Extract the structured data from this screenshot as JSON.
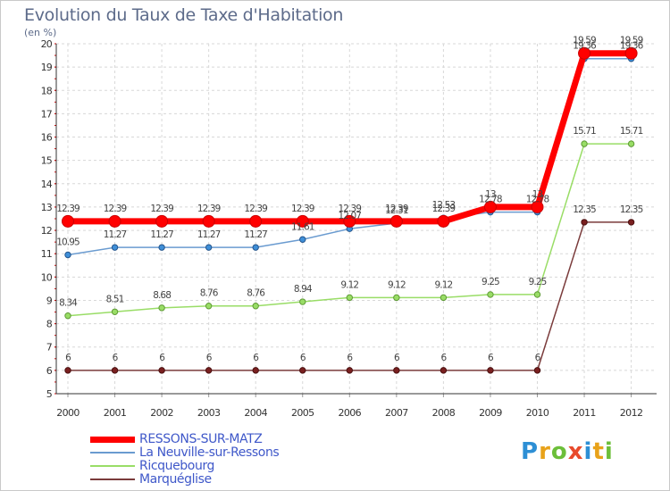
{
  "header": {
    "title": "Evolution du Taux de Taxe d'Habitation",
    "subtitle": "(en %)"
  },
  "logo": {
    "letters": [
      "P",
      "r",
      "o",
      "x",
      "i",
      "t",
      "i"
    ],
    "colors": [
      "#2d8fd5",
      "#e8a21a",
      "#6cbf3a",
      "#e84a2c",
      "#2d8fd5",
      "#e8a21a",
      "#6cbf3a"
    ]
  },
  "chart_data": {
    "type": "line",
    "title": "Evolution du Taux de Taxe d'Habitation",
    "ylabel": "(en %)",
    "xlabel": "",
    "x": [
      "2000",
      "2001",
      "2002",
      "2003",
      "2004",
      "2005",
      "2006",
      "2007",
      "2008",
      "2009",
      "2010",
      "2011",
      "2012"
    ],
    "ylim": [
      5,
      20
    ],
    "yticks": [
      "5",
      "6",
      "7",
      "8",
      "9",
      "10",
      "11",
      "12",
      "13",
      "14",
      "15",
      "16",
      "17",
      "18",
      "19",
      "20"
    ],
    "grid": true,
    "legend_position": "bottom-left",
    "series": [
      {
        "name": "RESSONS-SUR-MATZ",
        "color": "#ff0000",
        "values": [
          12.39,
          12.39,
          12.39,
          12.39,
          12.39,
          12.39,
          12.39,
          12.39,
          12.39,
          13,
          13,
          19.59,
          19.59
        ],
        "labels": [
          "12.39",
          "12.39",
          "12.39",
          "12.39",
          "12.39",
          "12.39",
          "12.39",
          "12.39",
          "12.39",
          "13",
          "13",
          "19.59",
          "19.59"
        ]
      },
      {
        "name": "La Neuville-sur-Ressons",
        "color": "#6a9bd0",
        "values": [
          10.95,
          11.27,
          11.27,
          11.27,
          11.27,
          11.61,
          12.07,
          12.31,
          12.53,
          12.78,
          12.78,
          19.36,
          19.36
        ],
        "labels": [
          "10.95",
          "11.27",
          "11.27",
          "11.27",
          "11.27",
          "11.61",
          "12.07",
          "12.31",
          "12.53",
          "12.78",
          "12.78",
          "19.36",
          "19.36"
        ]
      },
      {
        "name": "Ricquebourg",
        "color": "#99dd66",
        "values": [
          8.34,
          8.51,
          8.68,
          8.76,
          8.76,
          8.94,
          9.12,
          9.12,
          9.12,
          9.25,
          9.25,
          15.71,
          15.71
        ],
        "labels": [
          "8.34",
          "8.51",
          "8.68",
          "8.76",
          "8.76",
          "8.94",
          "9.12",
          "9.12",
          "9.12",
          "9.25",
          "9.25",
          "15.71",
          "15.71"
        ]
      },
      {
        "name": "Marquéglise",
        "color": "#7a3b3b",
        "values": [
          6,
          6,
          6,
          6,
          6,
          6,
          6,
          6,
          6,
          6,
          6,
          12.35,
          12.35
        ],
        "labels": [
          "6",
          "6",
          "6",
          "6",
          "6",
          "6",
          "6",
          "6",
          "6",
          "6",
          "6",
          "12.35",
          "12.35"
        ]
      }
    ]
  }
}
